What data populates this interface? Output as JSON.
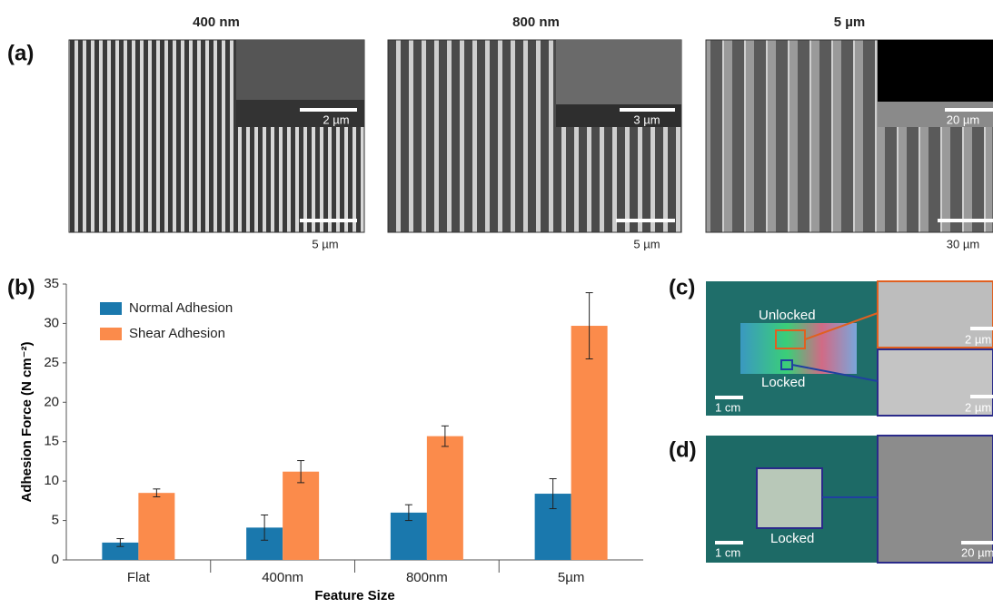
{
  "panel_a": {
    "label": "(a)",
    "images": [
      {
        "title": "400 nm",
        "inset_scale": "2 µm",
        "scale": "5 µm"
      },
      {
        "title": "800 nm",
        "inset_scale": "3 µm",
        "scale": "5 µm"
      },
      {
        "title": "5 µm",
        "inset_scale": "20 µm",
        "scale": "30 µm"
      }
    ]
  },
  "panel_b": {
    "label": "(b)"
  },
  "panel_c": {
    "label": "(c)",
    "unlocked": "Unlocked",
    "locked": "Locked",
    "scale": "1 cm",
    "top_scale": "2 µm",
    "bottom_scale": "2 µm"
  },
  "panel_d": {
    "label": "(d)",
    "locked": "Locked",
    "scale": "1 cm",
    "right_scale": "20 µm"
  },
  "chart_data": {
    "type": "bar",
    "x_label": "Feature Size",
    "y_label": "Adhesion Force (N cm⁻²)",
    "categories": [
      "Flat",
      "400nm",
      "800nm",
      "5µm"
    ],
    "series": [
      {
        "name": "Normal Adhesion",
        "color": "#1a78ad",
        "values": [
          2.2,
          4.1,
          6.0,
          8.4
        ],
        "errors": [
          0.5,
          1.6,
          1.0,
          1.9
        ]
      },
      {
        "name": "Shear Adhesion",
        "color": "#fb8b4b",
        "values": [
          8.5,
          11.2,
          15.7,
          29.7
        ],
        "errors": [
          0.5,
          1.4,
          1.3,
          4.2
        ]
      }
    ],
    "ylim": [
      0,
      35
    ],
    "yticks": [
      0,
      5,
      10,
      15,
      20,
      25,
      30,
      35
    ],
    "legend": "upper-left"
  }
}
